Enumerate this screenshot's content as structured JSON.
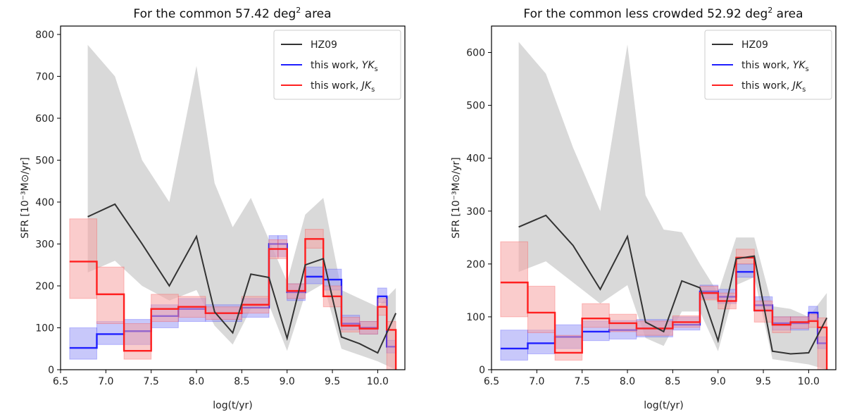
{
  "chart_data": [
    {
      "type": "line",
      "title_main": "For the common 57.42 deg",
      "title_sup": "2",
      "title_end": " area",
      "xlabel": "log(t/yr)",
      "ylabel": "SFR [10⁻³M⊙/yr]",
      "xlim": [
        6.5,
        10.3
      ],
      "ylim": [
        0,
        820
      ],
      "xticks": [
        6.5,
        7.0,
        7.5,
        8.0,
        8.5,
        9.0,
        9.5,
        10.0
      ],
      "xtick_labels": [
        "6.5",
        "7.0",
        "7.5",
        "8.0",
        "8.5",
        "9.0",
        "9.5",
        "10.0"
      ],
      "yticks": [
        0,
        100,
        200,
        300,
        400,
        500,
        600,
        700,
        800
      ],
      "ytick_labels": [
        "0",
        "100",
        "200",
        "300",
        "400",
        "500",
        "600",
        "700",
        "800"
      ],
      "legend_position": "top-right",
      "hz09": {
        "name": "HZ09",
        "color": "#333333",
        "x": [
          6.8,
          7.1,
          7.4,
          7.7,
          8.0,
          8.2,
          8.4,
          8.6,
          8.8,
          9.0,
          9.2,
          9.4,
          9.6,
          9.8,
          10.0,
          10.2
        ],
        "y": [
          365,
          395,
          300,
          200,
          318,
          138,
          88,
          228,
          220,
          75,
          250,
          265,
          78,
          62,
          40,
          135
        ],
        "low": [
          232,
          260,
          200,
          165,
          190,
          105,
          60,
          145,
          155,
          45,
          180,
          205,
          50,
          35,
          20,
          0
        ],
        "high": [
          775,
          700,
          500,
          400,
          725,
          445,
          340,
          410,
          310,
          210,
          370,
          410,
          190,
          170,
          150,
          195
        ],
        "band_color": "#cccccc"
      },
      "yk": {
        "name": "this work, ",
        "name_italic": "YK",
        "name_sub": "s",
        "color": "#1f1fff",
        "edges": [
          6.6,
          6.9,
          7.2,
          7.5,
          7.8,
          8.1,
          8.5,
          8.8,
          8.9,
          9.0,
          9.2,
          9.4,
          9.6,
          9.8,
          10.0,
          10.1,
          10.2
        ],
        "values": [
          52,
          85,
          92,
          128,
          145,
          135,
          148,
          300,
          300,
          185,
          222,
          215,
          110,
          100,
          175,
          55
        ],
        "low": [
          25,
          60,
          60,
          100,
          115,
          115,
          125,
          270,
          270,
          165,
          205,
          190,
          95,
          85,
          160,
          40
        ],
        "high": [
          100,
          115,
          120,
          155,
          170,
          155,
          170,
          320,
          320,
          205,
          245,
          240,
          130,
          115,
          195,
          70
        ],
        "band_color": "#9b9bf5"
      },
      "jk": {
        "name": "this work, ",
        "name_italic": "JK",
        "name_sub": "s",
        "color": "#ff1f1f",
        "edges": [
          6.6,
          6.9,
          7.2,
          7.5,
          7.8,
          8.1,
          8.5,
          8.8,
          8.9,
          9.0,
          9.2,
          9.4,
          9.6,
          9.8,
          10.0,
          10.1,
          10.2
        ],
        "values": [
          258,
          180,
          45,
          145,
          150,
          135,
          155,
          288,
          288,
          188,
          312,
          175,
          105,
          98,
          150,
          95
        ],
        "low": [
          170,
          110,
          25,
          115,
          125,
          120,
          135,
          265,
          265,
          170,
          290,
          150,
          90,
          85,
          130,
          0
        ],
        "high": [
          360,
          245,
          110,
          180,
          175,
          150,
          175,
          310,
          310,
          205,
          335,
          200,
          125,
          115,
          170,
          115
        ],
        "drop_to": 0,
        "band_color": "#f5a3a3"
      }
    },
    {
      "type": "line",
      "title_main": "For the common less crowded 52.92 deg",
      "title_sup": "2",
      "title_end": " area",
      "xlabel": "log(t/yr)",
      "ylabel": "SFR [10⁻³M⊙/yr]",
      "xlim": [
        6.5,
        10.3
      ],
      "ylim": [
        0,
        650
      ],
      "xticks": [
        6.5,
        7.0,
        7.5,
        8.0,
        8.5,
        9.0,
        9.5,
        10.0
      ],
      "xtick_labels": [
        "6.5",
        "7.0",
        "7.5",
        "8.0",
        "8.5",
        "9.0",
        "9.5",
        "10.0"
      ],
      "yticks": [
        0,
        100,
        200,
        300,
        400,
        500,
        600
      ],
      "ytick_labels": [
        "0",
        "100",
        "200",
        "300",
        "400",
        "500",
        "600"
      ],
      "legend_position": "top-right",
      "hz09": {
        "name": "HZ09",
        "color": "#333333",
        "x": [
          6.8,
          7.1,
          7.4,
          7.7,
          8.0,
          8.2,
          8.4,
          8.6,
          8.8,
          9.0,
          9.2,
          9.4,
          9.6,
          9.8,
          10.0,
          10.2
        ],
        "y": [
          270,
          292,
          235,
          152,
          252,
          90,
          72,
          168,
          155,
          55,
          210,
          215,
          35,
          30,
          32,
          98
        ],
        "low": [
          185,
          205,
          165,
          125,
          160,
          60,
          45,
          110,
          110,
          35,
          160,
          175,
          20,
          15,
          10,
          0
        ],
        "high": [
          620,
          560,
          420,
          300,
          615,
          330,
          265,
          260,
          200,
          145,
          250,
          250,
          120,
          115,
          100,
          145
        ],
        "band_color": "#cccccc"
      },
      "yk": {
        "name": "this work, ",
        "name_italic": "YK",
        "name_sub": "s",
        "color": "#1f1fff",
        "edges": [
          6.6,
          6.9,
          7.2,
          7.5,
          7.8,
          8.1,
          8.5,
          8.8,
          9.0,
          9.2,
          9.4,
          9.6,
          9.8,
          10.0,
          10.1,
          10.2
        ],
        "values": [
          40,
          50,
          62,
          72,
          75,
          78,
          85,
          148,
          138,
          185,
          122,
          88,
          88,
          108,
          50
        ],
        "low": [
          18,
          30,
          40,
          55,
          58,
          62,
          75,
          135,
          125,
          175,
          110,
          75,
          75,
          95,
          40
        ],
        "high": [
          75,
          75,
          85,
          92,
          93,
          95,
          100,
          160,
          152,
          200,
          138,
          100,
          100,
          120,
          62
        ],
        "band_color": "#9b9bf5"
      },
      "jk": {
        "name": "this work, ",
        "name_italic": "JK",
        "name_sub": "s",
        "color": "#ff1f1f",
        "edges": [
          6.6,
          6.9,
          7.2,
          7.5,
          7.8,
          8.1,
          8.5,
          8.8,
          9.0,
          9.2,
          9.4,
          9.6,
          9.8,
          10.0,
          10.1,
          10.2
        ],
        "values": [
          165,
          108,
          32,
          97,
          88,
          78,
          90,
          145,
          130,
          212,
          112,
          85,
          90,
          92,
          80
        ],
        "low": [
          100,
          70,
          18,
          80,
          72,
          65,
          80,
          132,
          115,
          200,
          90,
          70,
          78,
          80,
          0
        ],
        "high": [
          242,
          158,
          65,
          125,
          105,
          92,
          102,
          158,
          145,
          228,
          130,
          100,
          100,
          105,
          98
        ],
        "drop_to": 0,
        "band_color": "#f5a3a3"
      }
    }
  ]
}
